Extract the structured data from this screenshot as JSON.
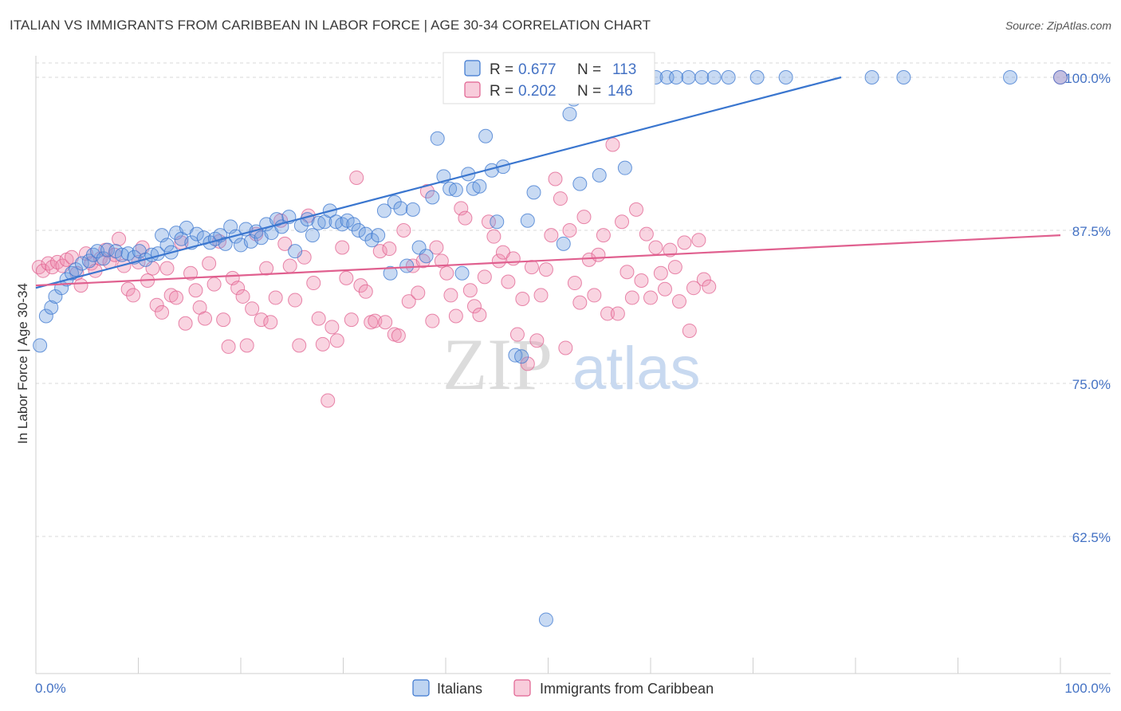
{
  "title": "ITALIAN VS IMMIGRANTS FROM CARIBBEAN IN LABOR FORCE | AGE 30-34 CORRELATION CHART",
  "source": "Source: ZipAtlas.com",
  "watermark": {
    "zip": "ZIP",
    "atlas": "atlas"
  },
  "colors": {
    "italians": "#6f9fe0",
    "italians_line": "#3a76cf",
    "caribbean": "#f08fb0",
    "caribbean_line": "#e0608f",
    "axis_label": "#4472c4"
  },
  "legend": {
    "r_label": "R =",
    "n_label": "N =",
    "rows": [
      {
        "r": "0.677",
        "n": "113"
      },
      {
        "r": "0.202",
        "n": "146"
      }
    ]
  },
  "chart_data": {
    "type": "scatter",
    "xlabel": "",
    "ylabel": "In Labor Force | Age 30-34",
    "xlim": [
      0,
      100
    ],
    "ylim": [
      50,
      101.5
    ],
    "x_tick_labels": [
      "0.0%",
      "100.0%"
    ],
    "y_ticks": [
      {
        "value": 100,
        "label": "100.0%"
      },
      {
        "value": 87.5,
        "label": "87.5%"
      },
      {
        "value": 75,
        "label": "75.0%"
      },
      {
        "value": 62.5,
        "label": "62.5%"
      }
    ],
    "series": [
      {
        "name": "Italians",
        "trend": [
          [
            0,
            82.8
          ],
          [
            78.6,
            100
          ]
        ],
        "points": [
          [
            0.4,
            78.1
          ],
          [
            1.0,
            80.5
          ],
          [
            1.5,
            81.2
          ],
          [
            1.9,
            82.1
          ],
          [
            2.5,
            82.8
          ],
          [
            3.0,
            83.5
          ],
          [
            3.5,
            84.0
          ],
          [
            3.9,
            84.3
          ],
          [
            4.5,
            84.8
          ],
          [
            5.2,
            85.0
          ],
          [
            5.6,
            85.5
          ],
          [
            6.0,
            85.8
          ],
          [
            6.6,
            85.2
          ],
          [
            7.0,
            85.9
          ],
          [
            7.8,
            85.8
          ],
          [
            8.4,
            85.5
          ],
          [
            9.0,
            85.6
          ],
          [
            9.6,
            85.3
          ],
          [
            10.1,
            85.8
          ],
          [
            10.7,
            85.1
          ],
          [
            11.3,
            85.5
          ],
          [
            11.9,
            85.6
          ],
          [
            12.3,
            87.1
          ],
          [
            12.8,
            86.3
          ],
          [
            13.2,
            85.7
          ],
          [
            13.7,
            87.3
          ],
          [
            14.2,
            86.8
          ],
          [
            14.7,
            87.7
          ],
          [
            15.2,
            86.5
          ],
          [
            15.7,
            87.2
          ],
          [
            16.4,
            86.9
          ],
          [
            17.0,
            86.5
          ],
          [
            17.5,
            86.8
          ],
          [
            18.0,
            87.1
          ],
          [
            18.5,
            86.4
          ],
          [
            19.0,
            87.8
          ],
          [
            19.5,
            87.0
          ],
          [
            20.0,
            86.3
          ],
          [
            20.5,
            87.6
          ],
          [
            21.0,
            86.6
          ],
          [
            21.5,
            87.4
          ],
          [
            22.0,
            86.9
          ],
          [
            22.5,
            88.0
          ],
          [
            23.0,
            87.3
          ],
          [
            23.5,
            88.4
          ],
          [
            24.0,
            87.8
          ],
          [
            24.7,
            88.6
          ],
          [
            25.3,
            85.8
          ],
          [
            25.9,
            87.9
          ],
          [
            26.5,
            88.4
          ],
          [
            27.0,
            87.1
          ],
          [
            27.6,
            88.1
          ],
          [
            28.2,
            88.2
          ],
          [
            28.7,
            89.1
          ],
          [
            29.3,
            88.2
          ],
          [
            29.9,
            88.0
          ],
          [
            30.4,
            88.3
          ],
          [
            31.0,
            88.0
          ],
          [
            31.5,
            87.5
          ],
          [
            32.2,
            87.2
          ],
          [
            32.8,
            86.7
          ],
          [
            33.4,
            87.1
          ],
          [
            34.0,
            89.1
          ],
          [
            34.6,
            84.0
          ],
          [
            35.0,
            89.8
          ],
          [
            35.6,
            89.3
          ],
          [
            36.2,
            84.6
          ],
          [
            36.8,
            89.2
          ],
          [
            37.4,
            86.1
          ],
          [
            38.1,
            85.4
          ],
          [
            38.7,
            90.2
          ],
          [
            39.2,
            95.0
          ],
          [
            39.8,
            91.9
          ],
          [
            40.4,
            90.9
          ],
          [
            41.0,
            90.8
          ],
          [
            41.6,
            84.0
          ],
          [
            42.2,
            92.1
          ],
          [
            42.7,
            90.9
          ],
          [
            43.3,
            91.1
          ],
          [
            43.9,
            95.2
          ],
          [
            44.5,
            92.4
          ],
          [
            45.0,
            88.2
          ],
          [
            45.6,
            92.7
          ],
          [
            46.2,
            100
          ],
          [
            46.8,
            77.3
          ],
          [
            47.4,
            77.2
          ],
          [
            48.0,
            88.3
          ],
          [
            48.6,
            90.6
          ],
          [
            49.2,
            100
          ],
          [
            49.8,
            55.7
          ],
          [
            50.4,
            100
          ],
          [
            51.0,
            100
          ],
          [
            51.5,
            86.4
          ],
          [
            52.1,
            97.0
          ],
          [
            52.5,
            98.2
          ],
          [
            53.1,
            91.3
          ],
          [
            53.7,
            100
          ],
          [
            54.3,
            100
          ],
          [
            55.0,
            92.0
          ],
          [
            55.7,
            100
          ],
          [
            57.0,
            100
          ],
          [
            57.5,
            92.6
          ],
          [
            58.4,
            100
          ],
          [
            59.3,
            100
          ],
          [
            60.5,
            100
          ],
          [
            61.6,
            100
          ],
          [
            62.5,
            100
          ],
          [
            63.7,
            100
          ],
          [
            65.0,
            100
          ],
          [
            66.2,
            100
          ],
          [
            67.6,
            100
          ],
          [
            70.4,
            100
          ],
          [
            73.2,
            100
          ],
          [
            81.6,
            100
          ],
          [
            84.7,
            100
          ],
          [
            95.1,
            100
          ],
          [
            100,
            100
          ]
        ]
      },
      {
        "name": "Immigrants from Caribbean",
        "trend": [
          [
            0,
            83.0
          ],
          [
            100,
            87.1
          ]
        ],
        "points": [
          [
            0.3,
            84.5
          ],
          [
            0.7,
            84.2
          ],
          [
            1.2,
            84.8
          ],
          [
            1.6,
            84.5
          ],
          [
            2.1,
            84.9
          ],
          [
            2.6,
            84.6
          ],
          [
            3.0,
            85.1
          ],
          [
            3.5,
            85.3
          ],
          [
            4.0,
            84.0
          ],
          [
            4.4,
            83.0
          ],
          [
            4.9,
            85.6
          ],
          [
            5.4,
            84.8
          ],
          [
            5.8,
            84.2
          ],
          [
            6.3,
            85.2
          ],
          [
            6.8,
            85.9
          ],
          [
            7.2,
            84.9
          ],
          [
            7.7,
            85.5
          ],
          [
            8.1,
            86.8
          ],
          [
            8.6,
            84.6
          ],
          [
            9.0,
            82.7
          ],
          [
            9.5,
            82.2
          ],
          [
            10.0,
            84.9
          ],
          [
            10.4,
            86.1
          ],
          [
            10.9,
            83.4
          ],
          [
            11.4,
            84.4
          ],
          [
            11.8,
            81.4
          ],
          [
            12.3,
            80.8
          ],
          [
            12.8,
            84.4
          ],
          [
            13.2,
            82.2
          ],
          [
            13.7,
            82.0
          ],
          [
            14.2,
            86.5
          ],
          [
            14.6,
            79.9
          ],
          [
            15.1,
            84.0
          ],
          [
            15.6,
            82.6
          ],
          [
            16.0,
            81.2
          ],
          [
            16.5,
            80.3
          ],
          [
            16.9,
            84.8
          ],
          [
            17.4,
            83.1
          ],
          [
            17.9,
            86.6
          ],
          [
            18.3,
            80.2
          ],
          [
            18.8,
            78.0
          ],
          [
            19.2,
            83.6
          ],
          [
            19.7,
            82.8
          ],
          [
            20.2,
            82.1
          ],
          [
            20.6,
            78.1
          ],
          [
            21.1,
            81.1
          ],
          [
            21.5,
            87.2
          ],
          [
            22.0,
            80.2
          ],
          [
            22.5,
            84.4
          ],
          [
            22.9,
            80.0
          ],
          [
            23.4,
            82.0
          ],
          [
            23.9,
            88.3
          ],
          [
            24.3,
            86.4
          ],
          [
            24.8,
            84.6
          ],
          [
            25.3,
            81.8
          ],
          [
            25.7,
            78.1
          ],
          [
            26.2,
            85.3
          ],
          [
            26.6,
            88.7
          ],
          [
            27.1,
            83.2
          ],
          [
            27.6,
            80.3
          ],
          [
            28.0,
            78.2
          ],
          [
            28.5,
            73.6
          ],
          [
            28.9,
            79.6
          ],
          [
            29.4,
            78.5
          ],
          [
            29.9,
            86.1
          ],
          [
            30.3,
            83.6
          ],
          [
            30.8,
            80.2
          ],
          [
            31.3,
            91.8
          ],
          [
            31.7,
            83.0
          ],
          [
            32.2,
            82.5
          ],
          [
            32.7,
            80.0
          ],
          [
            33.1,
            80.1
          ],
          [
            33.6,
            85.8
          ],
          [
            34.1,
            80.0
          ],
          [
            34.5,
            86.0
          ],
          [
            35.0,
            79.0
          ],
          [
            35.4,
            78.9
          ],
          [
            35.9,
            87.5
          ],
          [
            36.4,
            81.7
          ],
          [
            36.8,
            84.6
          ],
          [
            37.3,
            82.4
          ],
          [
            37.8,
            85.0
          ],
          [
            38.2,
            90.7
          ],
          [
            38.7,
            80.1
          ],
          [
            39.1,
            86.1
          ],
          [
            39.6,
            85.0
          ],
          [
            40.1,
            84.0
          ],
          [
            40.5,
            82.2
          ],
          [
            41.0,
            80.5
          ],
          [
            41.5,
            89.3
          ],
          [
            41.9,
            88.5
          ],
          [
            42.4,
            82.6
          ],
          [
            42.8,
            81.3
          ],
          [
            43.3,
            80.6
          ],
          [
            43.8,
            83.7
          ],
          [
            44.2,
            88.2
          ],
          [
            44.7,
            87.0
          ],
          [
            45.2,
            85.0
          ],
          [
            45.6,
            85.7
          ],
          [
            46.1,
            83.3
          ],
          [
            46.6,
            85.2
          ],
          [
            47.0,
            79.0
          ],
          [
            47.5,
            81.9
          ],
          [
            48.0,
            76.6
          ],
          [
            48.4,
            84.5
          ],
          [
            48.9,
            78.5
          ],
          [
            49.3,
            82.2
          ],
          [
            49.8,
            84.3
          ],
          [
            50.3,
            87.1
          ],
          [
            50.7,
            91.7
          ],
          [
            51.2,
            90.1
          ],
          [
            51.7,
            77.9
          ],
          [
            52.1,
            87.5
          ],
          [
            52.6,
            83.2
          ],
          [
            53.1,
            81.6
          ],
          [
            53.5,
            88.6
          ],
          [
            54.0,
            85.1
          ],
          [
            54.5,
            82.2
          ],
          [
            54.9,
            85.5
          ],
          [
            55.4,
            87.1
          ],
          [
            55.8,
            80.7
          ],
          [
            56.3,
            94.5
          ],
          [
            56.8,
            80.7
          ],
          [
            57.2,
            88.2
          ],
          [
            57.7,
            84.1
          ],
          [
            58.2,
            82.0
          ],
          [
            58.6,
            89.2
          ],
          [
            59.1,
            83.4
          ],
          [
            59.6,
            87.2
          ],
          [
            60.0,
            82.0
          ],
          [
            60.5,
            86.1
          ],
          [
            61.0,
            84.0
          ],
          [
            61.4,
            82.7
          ],
          [
            61.9,
            85.9
          ],
          [
            62.4,
            84.5
          ],
          [
            62.8,
            81.7
          ],
          [
            63.3,
            86.5
          ],
          [
            63.8,
            79.3
          ],
          [
            64.2,
            82.8
          ],
          [
            64.7,
            86.7
          ],
          [
            65.2,
            83.5
          ],
          [
            65.7,
            82.9
          ],
          [
            100,
            100
          ]
        ]
      }
    ]
  },
  "bottom_legend": [
    {
      "label": "Italians"
    },
    {
      "label": "Immigrants from Caribbean"
    }
  ]
}
